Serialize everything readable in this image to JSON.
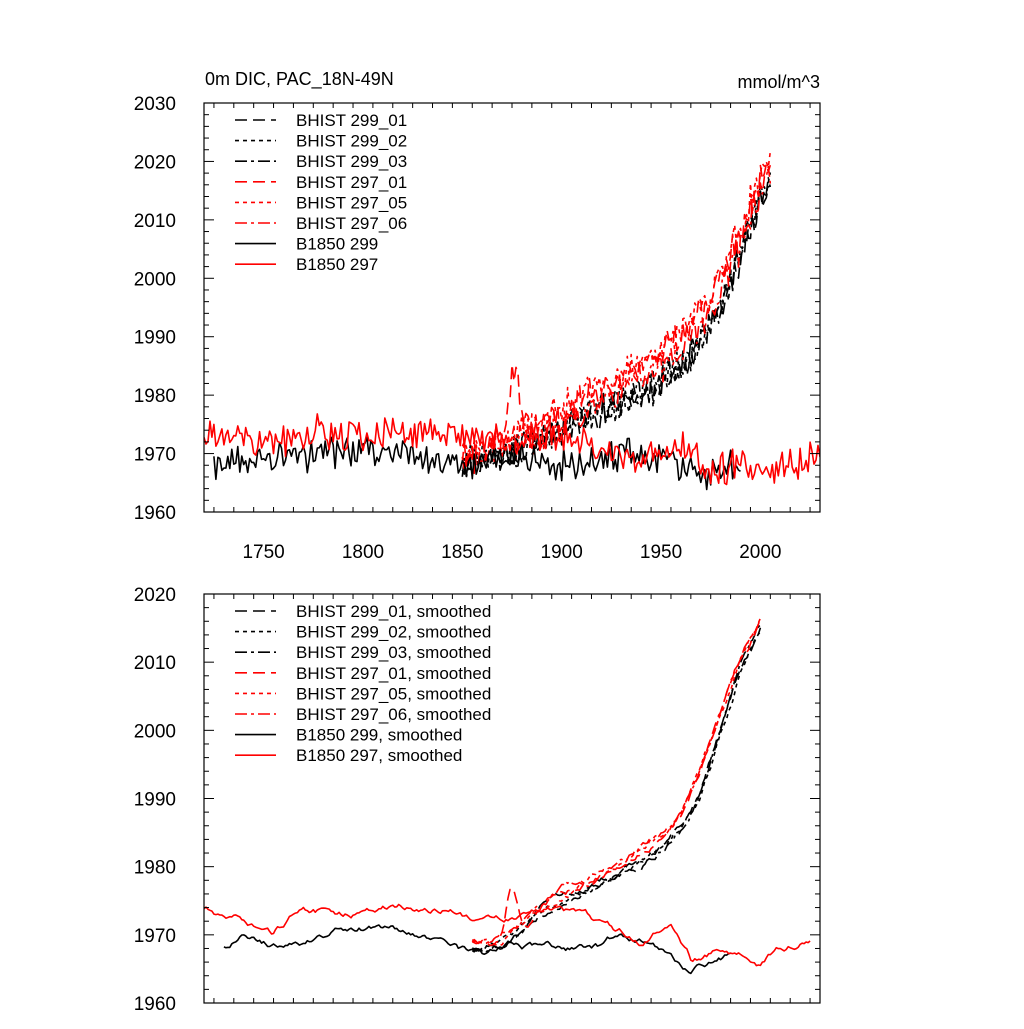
{
  "header": {
    "title": "0m DIC, PAC_18N-49N",
    "units": "mmol/m^3"
  },
  "styles": {
    "299": {
      "color": "#000000"
    },
    "297": {
      "color": "#ff0000"
    },
    "dash": {
      "01": "12,6",
      "02": "4,4",
      "03": "12,4,3,4",
      "control": "none"
    }
  },
  "chart_data": [
    {
      "type": "line",
      "title": "0m DIC, PAC_18N-49N",
      "units": "mmol/m^3",
      "xlim": [
        1720,
        2030
      ],
      "ylim": [
        1960,
        2030
      ],
      "xticks": [
        1750,
        1800,
        1850,
        1900,
        1950,
        2000
      ],
      "yticks": [
        1960,
        1970,
        1980,
        1990,
        2000,
        2010,
        2020,
        2030
      ],
      "xtick_labels_visible": true,
      "legend": {
        "placement": "top-left"
      },
      "series": [
        {
          "name": "BHIST 299_01",
          "group": "299",
          "dash": "01",
          "kind": "hist",
          "noise": 2.4,
          "seed": 11
        },
        {
          "name": "BHIST 299_02",
          "group": "299",
          "dash": "02",
          "kind": "hist",
          "noise": 2.4,
          "seed": 12
        },
        {
          "name": "BHIST 299_03",
          "group": "299",
          "dash": "03",
          "kind": "hist",
          "noise": 2.4,
          "seed": 13
        },
        {
          "name": "BHIST 297_01",
          "group": "297",
          "dash": "01",
          "kind": "hist",
          "noise": 2.4,
          "seed": 21
        },
        {
          "name": "BHIST 297_05",
          "group": "297",
          "dash": "02",
          "kind": "hist",
          "noise": 2.4,
          "seed": 22
        },
        {
          "name": "BHIST 297_06",
          "group": "297",
          "dash": "03",
          "kind": "hist",
          "noise": 2.4,
          "seed": 23
        },
        {
          "name": "B1850 299",
          "group": "299",
          "dash": "control",
          "kind": "control",
          "noise": 2.2,
          "seed": 31
        },
        {
          "name": "B1850 297",
          "group": "297",
          "dash": "control",
          "kind": "control",
          "noise": 2.2,
          "seed": 32
        }
      ],
      "guides": {
        "hist_x": [
          1850,
          1860,
          1875,
          1880,
          1890,
          1900,
          1920,
          1940,
          1950,
          1960,
          1970,
          1980,
          1990,
          2000,
          2005
        ],
        "hist_299_y": [
          1968,
          1969,
          1970,
          1971,
          1973,
          1975,
          1978,
          1981,
          1983,
          1986,
          1990,
          1996,
          2005,
          2014,
          2017
        ],
        "hist_297_y": [
          1969,
          1970,
          1972,
          1974,
          1974,
          1976,
          1980,
          1984,
          1986,
          1989,
          1993,
          1999,
          2007,
          2016,
          2019
        ],
        "control_299_x": [
          1725,
          1750,
          1780,
          1800,
          1820,
          1850,
          1870,
          1900,
          1920,
          1940,
          1960,
          1970,
          1990
        ],
        "control_299_y": [
          1968,
          1969,
          1970,
          1971,
          1970,
          1968,
          1969,
          1968,
          1969,
          1970,
          1968,
          1966,
          1968
        ],
        "control_297_x": [
          1720,
          1740,
          1750,
          1780,
          1800,
          1820,
          1850,
          1870,
          1890,
          1910,
          1930,
          1950,
          1960,
          1975,
          1990,
          2000,
          2010,
          2030
        ],
        "control_297_y": [
          1974,
          1972,
          1971,
          1974,
          1973,
          1974,
          1973,
          1972,
          1973,
          1972,
          1970,
          1970,
          1972,
          1967,
          1968,
          1966,
          1968,
          1970
        ],
        "spike_297_01": {
          "x": 1876,
          "y": 1983
        }
      }
    },
    {
      "type": "line",
      "xlim": [
        1720,
        2030
      ],
      "ylim": [
        1960,
        2020
      ],
      "xticks": [
        1750,
        1800,
        1850,
        1900,
        1950,
        2000
      ],
      "yticks": [
        1960,
        1970,
        1980,
        1990,
        2000,
        2010,
        2020
      ],
      "xtick_labels_visible": false,
      "legend": {
        "placement": "top-left"
      },
      "series": [
        {
          "name": "BHIST 299_01, smoothed",
          "group": "299",
          "dash": "01",
          "kind": "hist",
          "noise": 0.35,
          "seed": 41
        },
        {
          "name": "BHIST 299_02, smoothed",
          "group": "299",
          "dash": "02",
          "kind": "hist",
          "noise": 0.35,
          "seed": 42
        },
        {
          "name": "BHIST 299_03, smoothed",
          "group": "299",
          "dash": "03",
          "kind": "hist",
          "noise": 0.35,
          "seed": 43
        },
        {
          "name": "BHIST 297_01, smoothed",
          "group": "297",
          "dash": "01",
          "kind": "hist",
          "noise": 0.35,
          "seed": 51
        },
        {
          "name": "BHIST 297_05, smoothed",
          "group": "297",
          "dash": "02",
          "kind": "hist",
          "noise": 0.35,
          "seed": 52
        },
        {
          "name": "BHIST 297_06, smoothed",
          "group": "297",
          "dash": "03",
          "kind": "hist",
          "noise": 0.35,
          "seed": 53
        },
        {
          "name": "B1850 299, smoothed",
          "group": "299",
          "dash": "control",
          "kind": "control",
          "noise": 0.35,
          "seed": 61
        },
        {
          "name": "B1850 297, smoothed",
          "group": "297",
          "dash": "control",
          "kind": "control",
          "noise": 0.35,
          "seed": 62
        }
      ],
      "guides": {
        "hist_x": [
          1855,
          1870,
          1880,
          1890,
          1900,
          1920,
          1940,
          1950,
          1960,
          1970,
          1980,
          1990,
          2000
        ],
        "hist_299_y": [
          1968,
          1969,
          1971,
          1974,
          1975,
          1978,
          1981,
          1983,
          1986,
          1991,
          2000,
          2009,
          2015
        ],
        "hist_297_y": [
          1969,
          1970,
          1972,
          1975,
          1977,
          1980,
          1984,
          1986,
          1989,
          1995,
          2003,
          2011,
          2017
        ],
        "control_299_x": [
          1730,
          1740,
          1760,
          1780,
          1800,
          1820,
          1840,
          1860,
          1875,
          1900,
          1920,
          1930,
          1950,
          1965,
          1985
        ],
        "control_299_y": [
          1968,
          1970,
          1968,
          1970,
          1971,
          1970,
          1968,
          1966,
          1968,
          1968,
          1968,
          1970,
          1968,
          1965,
          1967
        ],
        "control_297_x": [
          1720,
          1740,
          1755,
          1770,
          1790,
          1810,
          1840,
          1860,
          1880,
          1900,
          1920,
          1940,
          1955,
          1965,
          1980,
          2000,
          2010,
          2025
        ],
        "control_297_y": [
          1974,
          1972,
          1970,
          1974,
          1973,
          1974,
          1974,
          1972,
          1973,
          1973,
          1971,
          1969,
          1973,
          1967,
          1968,
          1966,
          1968,
          1970
        ],
        "spike_297_01": {
          "x": 1875,
          "y": 1978
        }
      }
    }
  ]
}
